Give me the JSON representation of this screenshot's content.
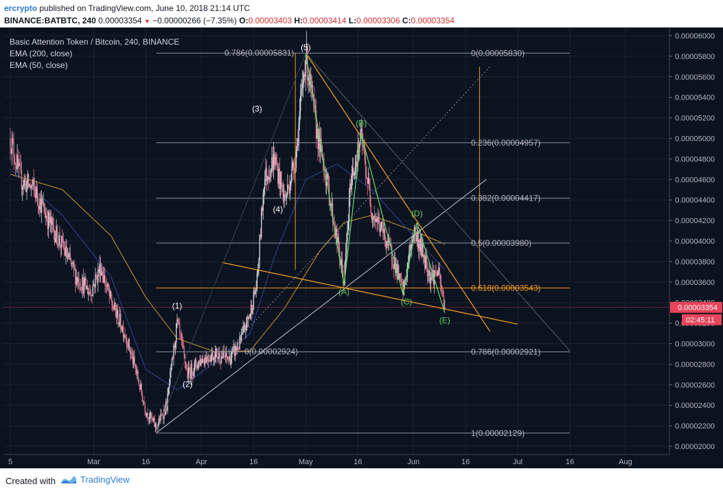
{
  "header": {
    "author": "ercrypto",
    "published_text": "published on TradingView.com, June 10, 2018 21:14 UTC",
    "symbol": "BINANCE:BATBTC, 240",
    "last_price": "0.00003354",
    "change": "−0.00000266 (−7.35%)",
    "o_label": "O:",
    "o_value": "0.00003403",
    "h_label": "H:",
    "h_value": "0.00003414",
    "l_label": "L:",
    "l_value": "0.00003306",
    "c_label": "C:",
    "c_value": "0.00003354"
  },
  "legend": {
    "title": "Basic Attention Token / Bitcoin, 240, BINANCE",
    "ema200": "EMA (200, close)",
    "ema50": "EMA (50, close)"
  },
  "chart_data": {
    "type": "candlestick",
    "title": "Basic Attention Token / Bitcoin, 240, BINANCE",
    "xlabel": "",
    "ylabel": "",
    "ylim": [
      1.92e-05,
      6.08e-05
    ],
    "y_ticks": [
      "0.00006000",
      "0.00005800",
      "0.00005600",
      "0.00005400",
      "0.00005200",
      "0.00005000",
      "0.00004800",
      "0.00004600",
      "0.00004400",
      "0.00004200",
      "0.00004000",
      "0.00003800",
      "0.00003600",
      "0.00003400",
      "0.00003200",
      "0.00003000",
      "0.00002800",
      "0.00002600",
      "0.00002400",
      "0.00002200",
      "0.00002000"
    ],
    "x_ticks": [
      {
        "label": "5",
        "date": "2018-02-05"
      },
      {
        "label": "Mar",
        "date": "2018-03-01"
      },
      {
        "label": "16",
        "date": "2018-03-16"
      },
      {
        "label": "Apr",
        "date": "2018-04-01"
      },
      {
        "label": "16",
        "date": "2018-04-16"
      },
      {
        "label": "May",
        "date": "2018-05-01"
      },
      {
        "label": "16",
        "date": "2018-05-16"
      },
      {
        "label": "Jun",
        "date": "2018-06-01"
      },
      {
        "label": "16",
        "date": "2018-06-16"
      },
      {
        "label": "Jul",
        "date": "2018-07-01"
      },
      {
        "label": "16",
        "date": "2018-07-16"
      },
      {
        "label": "Aug",
        "date": "2018-08-01"
      }
    ],
    "price_path": [
      [
        "2018-02-05",
        5e-05
      ],
      [
        "2018-02-08",
        4.6e-05
      ],
      [
        "2018-02-12",
        4.5e-05
      ],
      [
        "2018-02-16",
        4.2e-05
      ],
      [
        "2018-02-20",
        3.95e-05
      ],
      [
        "2018-02-24",
        3.65e-05
      ],
      [
        "2018-02-28",
        3.5e-05
      ],
      [
        "2018-03-03",
        3.75e-05
      ],
      [
        "2018-03-06",
        3.4e-05
      ],
      [
        "2018-03-10",
        3.1e-05
      ],
      [
        "2018-03-13",
        2.75e-05
      ],
      [
        "2018-03-16",
        2.35e-05
      ],
      [
        "2018-03-19",
        2.18e-05
      ],
      [
        "2018-03-22",
        2.4e-05
      ],
      [
        "2018-03-25",
        3.2e-05
      ],
      [
        "2018-03-28",
        2.7e-05
      ],
      [
        "2018-04-01",
        2.85e-05
      ],
      [
        "2018-04-05",
        2.9e-05
      ],
      [
        "2018-04-09",
        2.85e-05
      ],
      [
        "2018-04-12",
        3e-05
      ],
      [
        "2018-04-15",
        3.3e-05
      ],
      [
        "2018-04-17",
        3.6e-05
      ],
      [
        "2018-04-19",
        4.6e-05
      ],
      [
        "2018-04-22",
        4.8e-05
      ],
      [
        "2018-04-25",
        4.4e-05
      ],
      [
        "2018-04-28",
        4.8e-05
      ],
      [
        "2018-05-01",
        5.82e-05
      ],
      [
        "2018-05-04",
        5.1e-05
      ],
      [
        "2018-05-07",
        4.6e-05
      ],
      [
        "2018-05-10",
        4e-05
      ],
      [
        "2018-05-12",
        3.6e-05
      ],
      [
        "2018-05-14",
        4.6e-05
      ],
      [
        "2018-05-17",
        5e-05
      ],
      [
        "2018-05-20",
        4.3e-05
      ],
      [
        "2018-05-23",
        4.1e-05
      ],
      [
        "2018-05-26",
        3.85e-05
      ],
      [
        "2018-05-29",
        3.5e-05
      ],
      [
        "2018-06-01",
        4.1e-05
      ],
      [
        "2018-06-03",
        3.95e-05
      ],
      [
        "2018-06-06",
        3.65e-05
      ],
      [
        "2018-06-08",
        3.7e-05
      ],
      [
        "2018-06-10",
        3.35e-05
      ]
    ],
    "ema_200": [
      [
        "2018-02-05",
        4.65e-05
      ],
      [
        "2018-02-20",
        4.5e-05
      ],
      [
        "2018-03-06",
        4.05e-05
      ],
      [
        "2018-03-16",
        3.45e-05
      ],
      [
        "2018-03-25",
        3.05e-05
      ],
      [
        "2018-04-05",
        2.92e-05
      ],
      [
        "2018-04-15",
        2.93e-05
      ],
      [
        "2018-04-25",
        3.35e-05
      ],
      [
        "2018-05-05",
        3.9e-05
      ],
      [
        "2018-05-12",
        4.18e-05
      ],
      [
        "2018-05-20",
        4.25e-05
      ],
      [
        "2018-06-01",
        4.1e-05
      ],
      [
        "2018-06-10",
        3.97e-05
      ]
    ],
    "ema_50": [
      [
        "2018-02-05",
        4.7e-05
      ],
      [
        "2018-02-20",
        4.25e-05
      ],
      [
        "2018-03-06",
        3.65e-05
      ],
      [
        "2018-03-16",
        2.75e-05
      ],
      [
        "2018-03-25",
        2.55e-05
      ],
      [
        "2018-04-05",
        2.82e-05
      ],
      [
        "2018-04-15",
        3.1e-05
      ],
      [
        "2018-04-22",
        3.85e-05
      ],
      [
        "2018-05-01",
        4.6e-05
      ],
      [
        "2018-05-10",
        4.75e-05
      ],
      [
        "2018-05-20",
        4.5e-05
      ],
      [
        "2018-06-01",
        4.05e-05
      ],
      [
        "2018-06-10",
        3.72e-05
      ]
    ],
    "fib_levels": [
      {
        "label": "0(0.00005830)",
        "value": 5.83e-05
      },
      {
        "label": "0.236(0.00004957)",
        "value": 4.957e-05
      },
      {
        "label": "0.382(0.00004417)",
        "value": 4.417e-05
      },
      {
        "label": "0.5(0.00003980)",
        "value": 3.98e-05
      },
      {
        "label": "0.618(0.00003543)",
        "value": 3.543e-05
      },
      {
        "label": "0.786(0.00002921)",
        "value": 2.921e-05
      },
      {
        "label": "1(0.00002129)",
        "value": 2.129e-05
      }
    ],
    "fib_extra_labels": [
      {
        "label": "0.786(0.00005831)",
        "value": 5.831e-05
      },
      {
        "label": "0(0.00002924)",
        "value": 2.924e-05
      }
    ],
    "wave_labels": [
      {
        "label": "(1)",
        "date": "2018-03-25",
        "value": 3.34e-05
      },
      {
        "label": "(2)",
        "date": "2018-03-28",
        "value": 2.58e-05
      },
      {
        "label": "(3)",
        "date": "2018-04-17",
        "value": 5.26e-05
      },
      {
        "label": "(4)",
        "date": "2018-04-23",
        "value": 4.28e-05
      },
      {
        "label": "(5)",
        "date": "2018-05-01",
        "value": 5.86e-05
      }
    ],
    "abcde_labels": [
      {
        "label": "(A)",
        "date": "2018-05-12",
        "value": 3.48e-05
      },
      {
        "label": "(B)",
        "date": "2018-05-17",
        "value": 5.12e-05
      },
      {
        "label": "(C)",
        "date": "2018-05-30",
        "value": 3.38e-05
      },
      {
        "label": "(D)",
        "date": "2018-06-02",
        "value": 4.24e-05
      },
      {
        "label": "(E)",
        "date": "2018-06-10",
        "value": 3.2e-05
      }
    ],
    "abcde_path": [
      [
        "2018-05-01",
        5.83e-05
      ],
      [
        "2018-05-12",
        3.57e-05
      ],
      [
        "2018-05-17",
        5.04e-05
      ],
      [
        "2018-05-29",
        3.48e-05
      ],
      [
        "2018-06-02",
        4.18e-05
      ],
      [
        "2018-06-10",
        3.3e-05
      ]
    ],
    "trendline_support": [
      [
        "2018-03-19",
        2.13e-05
      ],
      [
        "2018-06-22",
        4.6e-05
      ]
    ],
    "triangle_upper": [
      [
        "2018-05-01",
        5.83e-05
      ],
      [
        "2018-06-23",
        3.12e-05
      ]
    ],
    "triangle_lower": [
      [
        "2018-04-07",
        3.79e-05
      ],
      [
        "2018-07-01",
        3.19e-05
      ]
    ],
    "triangle_outer": [
      [
        "2018-05-01",
        5.83e-05
      ],
      [
        "2018-07-16",
        2.93e-05
      ]
    ],
    "diagonal_dashed": [
      [
        "2018-04-08",
        2.91e-05
      ],
      [
        "2018-06-23",
        5.7e-05
      ]
    ],
    "current_price": {
      "label": "0.00003354",
      "value": 3.354e-05,
      "countdown": "02:45:11"
    }
  },
  "colors": {
    "bg": "#0c1320",
    "grid": "#182233",
    "up": "#cfd3d8",
    "down": "#e07a92",
    "ema200": "#b5842f",
    "ema50": "#2a3d88",
    "orange": "#f39a1e",
    "green": "#62d66a",
    "fib": "#8d929c",
    "price_tag": "#e8445a"
  },
  "footer": {
    "created_with": "Created with",
    "brand": "TradingView"
  }
}
